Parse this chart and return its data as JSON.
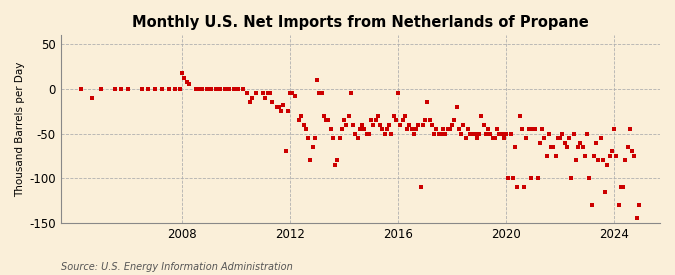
{
  "title": "Monthly U.S. Net Imports from Netherlands of Propane",
  "ylabel": "Thousand Barrels per Day",
  "source": "Source: U.S. Energy Information Administration",
  "background_color": "#faefd9",
  "marker_color": "#cc0000",
  "ylim": [
    -150,
    60
  ],
  "yticks": [
    -150,
    -100,
    -50,
    0,
    50
  ],
  "xlim_start": 2003.5,
  "xlim_end": 2025.7,
  "xticks": [
    2008,
    2012,
    2016,
    2020,
    2024
  ],
  "data": [
    [
      2004.25,
      0
    ],
    [
      2004.67,
      -10
    ],
    [
      2005.0,
      0
    ],
    [
      2005.5,
      0
    ],
    [
      2005.75,
      0
    ],
    [
      2006.0,
      0
    ],
    [
      2006.5,
      0
    ],
    [
      2006.75,
      0
    ],
    [
      2007.0,
      0
    ],
    [
      2007.25,
      0
    ],
    [
      2007.5,
      0
    ],
    [
      2007.75,
      0
    ],
    [
      2007.92,
      0
    ],
    [
      2008.0,
      18
    ],
    [
      2008.08,
      12
    ],
    [
      2008.17,
      8
    ],
    [
      2008.25,
      5
    ],
    [
      2008.5,
      0
    ],
    [
      2008.58,
      0
    ],
    [
      2008.67,
      0
    ],
    [
      2008.75,
      0
    ],
    [
      2008.92,
      0
    ],
    [
      2009.0,
      0
    ],
    [
      2009.08,
      0
    ],
    [
      2009.25,
      0
    ],
    [
      2009.42,
      0
    ],
    [
      2009.58,
      0
    ],
    [
      2009.67,
      0
    ],
    [
      2009.75,
      0
    ],
    [
      2009.92,
      0
    ],
    [
      2010.0,
      0
    ],
    [
      2010.08,
      0
    ],
    [
      2010.25,
      0
    ],
    [
      2010.42,
      -5
    ],
    [
      2010.5,
      -15
    ],
    [
      2010.58,
      -10
    ],
    [
      2010.75,
      -5
    ],
    [
      2011.0,
      -5
    ],
    [
      2011.08,
      -10
    ],
    [
      2011.17,
      -5
    ],
    [
      2011.25,
      -5
    ],
    [
      2011.33,
      -15
    ],
    [
      2011.5,
      -20
    ],
    [
      2011.58,
      -20
    ],
    [
      2011.67,
      -25
    ],
    [
      2011.75,
      -18
    ],
    [
      2011.83,
      -70
    ],
    [
      2011.92,
      -25
    ],
    [
      2012.0,
      -5
    ],
    [
      2012.08,
      -5
    ],
    [
      2012.17,
      -8
    ],
    [
      2012.33,
      -35
    ],
    [
      2012.42,
      -30
    ],
    [
      2012.5,
      -40
    ],
    [
      2012.58,
      -45
    ],
    [
      2012.67,
      -55
    ],
    [
      2012.75,
      -80
    ],
    [
      2012.83,
      -65
    ],
    [
      2012.92,
      -55
    ],
    [
      2013.0,
      10
    ],
    [
      2013.08,
      -5
    ],
    [
      2013.17,
      -5
    ],
    [
      2013.25,
      -30
    ],
    [
      2013.33,
      -35
    ],
    [
      2013.42,
      -35
    ],
    [
      2013.5,
      -45
    ],
    [
      2013.58,
      -55
    ],
    [
      2013.67,
      -85
    ],
    [
      2013.75,
      -80
    ],
    [
      2013.83,
      -55
    ],
    [
      2013.92,
      -45
    ],
    [
      2014.0,
      -35
    ],
    [
      2014.08,
      -40
    ],
    [
      2014.17,
      -30
    ],
    [
      2014.25,
      -5
    ],
    [
      2014.33,
      -40
    ],
    [
      2014.42,
      -50
    ],
    [
      2014.5,
      -55
    ],
    [
      2014.58,
      -45
    ],
    [
      2014.67,
      -40
    ],
    [
      2014.75,
      -45
    ],
    [
      2014.83,
      -50
    ],
    [
      2014.92,
      -50
    ],
    [
      2015.0,
      -35
    ],
    [
      2015.08,
      -40
    ],
    [
      2015.17,
      -35
    ],
    [
      2015.25,
      -30
    ],
    [
      2015.33,
      -40
    ],
    [
      2015.42,
      -45
    ],
    [
      2015.5,
      -50
    ],
    [
      2015.58,
      -45
    ],
    [
      2015.67,
      -40
    ],
    [
      2015.75,
      -50
    ],
    [
      2015.83,
      -30
    ],
    [
      2015.92,
      -35
    ],
    [
      2016.0,
      -5
    ],
    [
      2016.08,
      -40
    ],
    [
      2016.17,
      -35
    ],
    [
      2016.25,
      -30
    ],
    [
      2016.33,
      -45
    ],
    [
      2016.42,
      -40
    ],
    [
      2016.5,
      -45
    ],
    [
      2016.58,
      -50
    ],
    [
      2016.67,
      -45
    ],
    [
      2016.75,
      -40
    ],
    [
      2016.83,
      -110
    ],
    [
      2016.92,
      -40
    ],
    [
      2017.0,
      -35
    ],
    [
      2017.08,
      -15
    ],
    [
      2017.17,
      -35
    ],
    [
      2017.25,
      -40
    ],
    [
      2017.33,
      -50
    ],
    [
      2017.42,
      -45
    ],
    [
      2017.5,
      -50
    ],
    [
      2017.58,
      -50
    ],
    [
      2017.67,
      -45
    ],
    [
      2017.75,
      -50
    ],
    [
      2017.83,
      -45
    ],
    [
      2017.92,
      -45
    ],
    [
      2018.0,
      -40
    ],
    [
      2018.08,
      -35
    ],
    [
      2018.17,
      -20
    ],
    [
      2018.25,
      -45
    ],
    [
      2018.33,
      -50
    ],
    [
      2018.42,
      -40
    ],
    [
      2018.5,
      -55
    ],
    [
      2018.58,
      -45
    ],
    [
      2018.67,
      -50
    ],
    [
      2018.75,
      -50
    ],
    [
      2018.83,
      -50
    ],
    [
      2018.92,
      -55
    ],
    [
      2019.0,
      -50
    ],
    [
      2019.08,
      -30
    ],
    [
      2019.17,
      -40
    ],
    [
      2019.25,
      -50
    ],
    [
      2019.33,
      -45
    ],
    [
      2019.42,
      -50
    ],
    [
      2019.5,
      -55
    ],
    [
      2019.58,
      -55
    ],
    [
      2019.67,
      -45
    ],
    [
      2019.75,
      -50
    ],
    [
      2019.83,
      -50
    ],
    [
      2019.92,
      -55
    ],
    [
      2020.0,
      -50
    ],
    [
      2020.08,
      -100
    ],
    [
      2020.17,
      -50
    ],
    [
      2020.25,
      -100
    ],
    [
      2020.33,
      -65
    ],
    [
      2020.42,
      -110
    ],
    [
      2020.5,
      -30
    ],
    [
      2020.58,
      -45
    ],
    [
      2020.67,
      -110
    ],
    [
      2020.75,
      -55
    ],
    [
      2020.83,
      -45
    ],
    [
      2020.92,
      -100
    ],
    [
      2021.0,
      -45
    ],
    [
      2021.08,
      -45
    ],
    [
      2021.17,
      -100
    ],
    [
      2021.25,
      -60
    ],
    [
      2021.33,
      -45
    ],
    [
      2021.42,
      -55
    ],
    [
      2021.5,
      -75
    ],
    [
      2021.58,
      -50
    ],
    [
      2021.67,
      -65
    ],
    [
      2021.75,
      -65
    ],
    [
      2021.83,
      -75
    ],
    [
      2021.92,
      -55
    ],
    [
      2022.0,
      -55
    ],
    [
      2022.08,
      -50
    ],
    [
      2022.17,
      -60
    ],
    [
      2022.25,
      -65
    ],
    [
      2022.33,
      -55
    ],
    [
      2022.42,
      -100
    ],
    [
      2022.5,
      -50
    ],
    [
      2022.58,
      -80
    ],
    [
      2022.67,
      -65
    ],
    [
      2022.75,
      -60
    ],
    [
      2022.83,
      -65
    ],
    [
      2022.92,
      -75
    ],
    [
      2023.0,
      -50
    ],
    [
      2023.08,
      -100
    ],
    [
      2023.17,
      -130
    ],
    [
      2023.25,
      -75
    ],
    [
      2023.33,
      -60
    ],
    [
      2023.42,
      -80
    ],
    [
      2023.5,
      -55
    ],
    [
      2023.58,
      -80
    ],
    [
      2023.67,
      -115
    ],
    [
      2023.75,
      -85
    ],
    [
      2023.83,
      -75
    ],
    [
      2023.92,
      -70
    ],
    [
      2024.0,
      -45
    ],
    [
      2024.08,
      -75
    ],
    [
      2024.17,
      -130
    ],
    [
      2024.25,
      -110
    ],
    [
      2024.33,
      -110
    ],
    [
      2024.42,
      -80
    ],
    [
      2024.5,
      -65
    ],
    [
      2024.58,
      -45
    ],
    [
      2024.67,
      -70
    ],
    [
      2024.75,
      -75
    ],
    [
      2024.83,
      -145
    ],
    [
      2024.92,
      -130
    ]
  ]
}
